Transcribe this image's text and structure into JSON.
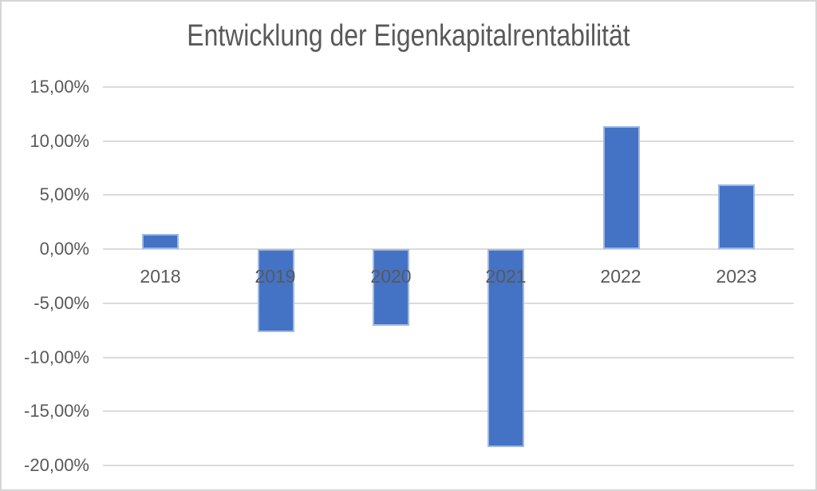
{
  "chart_data": {
    "type": "bar",
    "title": "Entwicklung der Eigenkapitalrentabilität",
    "categories": [
      "2018",
      "2019",
      "2020",
      "2021",
      "2022",
      "2023"
    ],
    "values": [
      1.4,
      -7.7,
      -7.1,
      -18.3,
      11.4,
      6.0
    ],
    "value_unit": "percent",
    "y_axis": {
      "tick_labels": [
        "15,00%",
        "10,00%",
        "5,00%",
        "0,00%",
        "-5,00%",
        "-10,00%",
        "-15,00%",
        "-20,00%"
      ],
      "tick_values": [
        15,
        10,
        5,
        0,
        -5,
        -10,
        -15,
        -20
      ],
      "min": -20,
      "max": 15,
      "number_format": "0,00%"
    },
    "grid": true,
    "legend": "none",
    "colors": {
      "bar_fill": "#4472C4",
      "bar_border": "#9FB9E2",
      "gridline": "#DBDBDB",
      "axis_line": "#DBDBDB",
      "text": "#595959",
      "background": "#FFFFFF",
      "frame_border": "#D6D6D6"
    }
  }
}
